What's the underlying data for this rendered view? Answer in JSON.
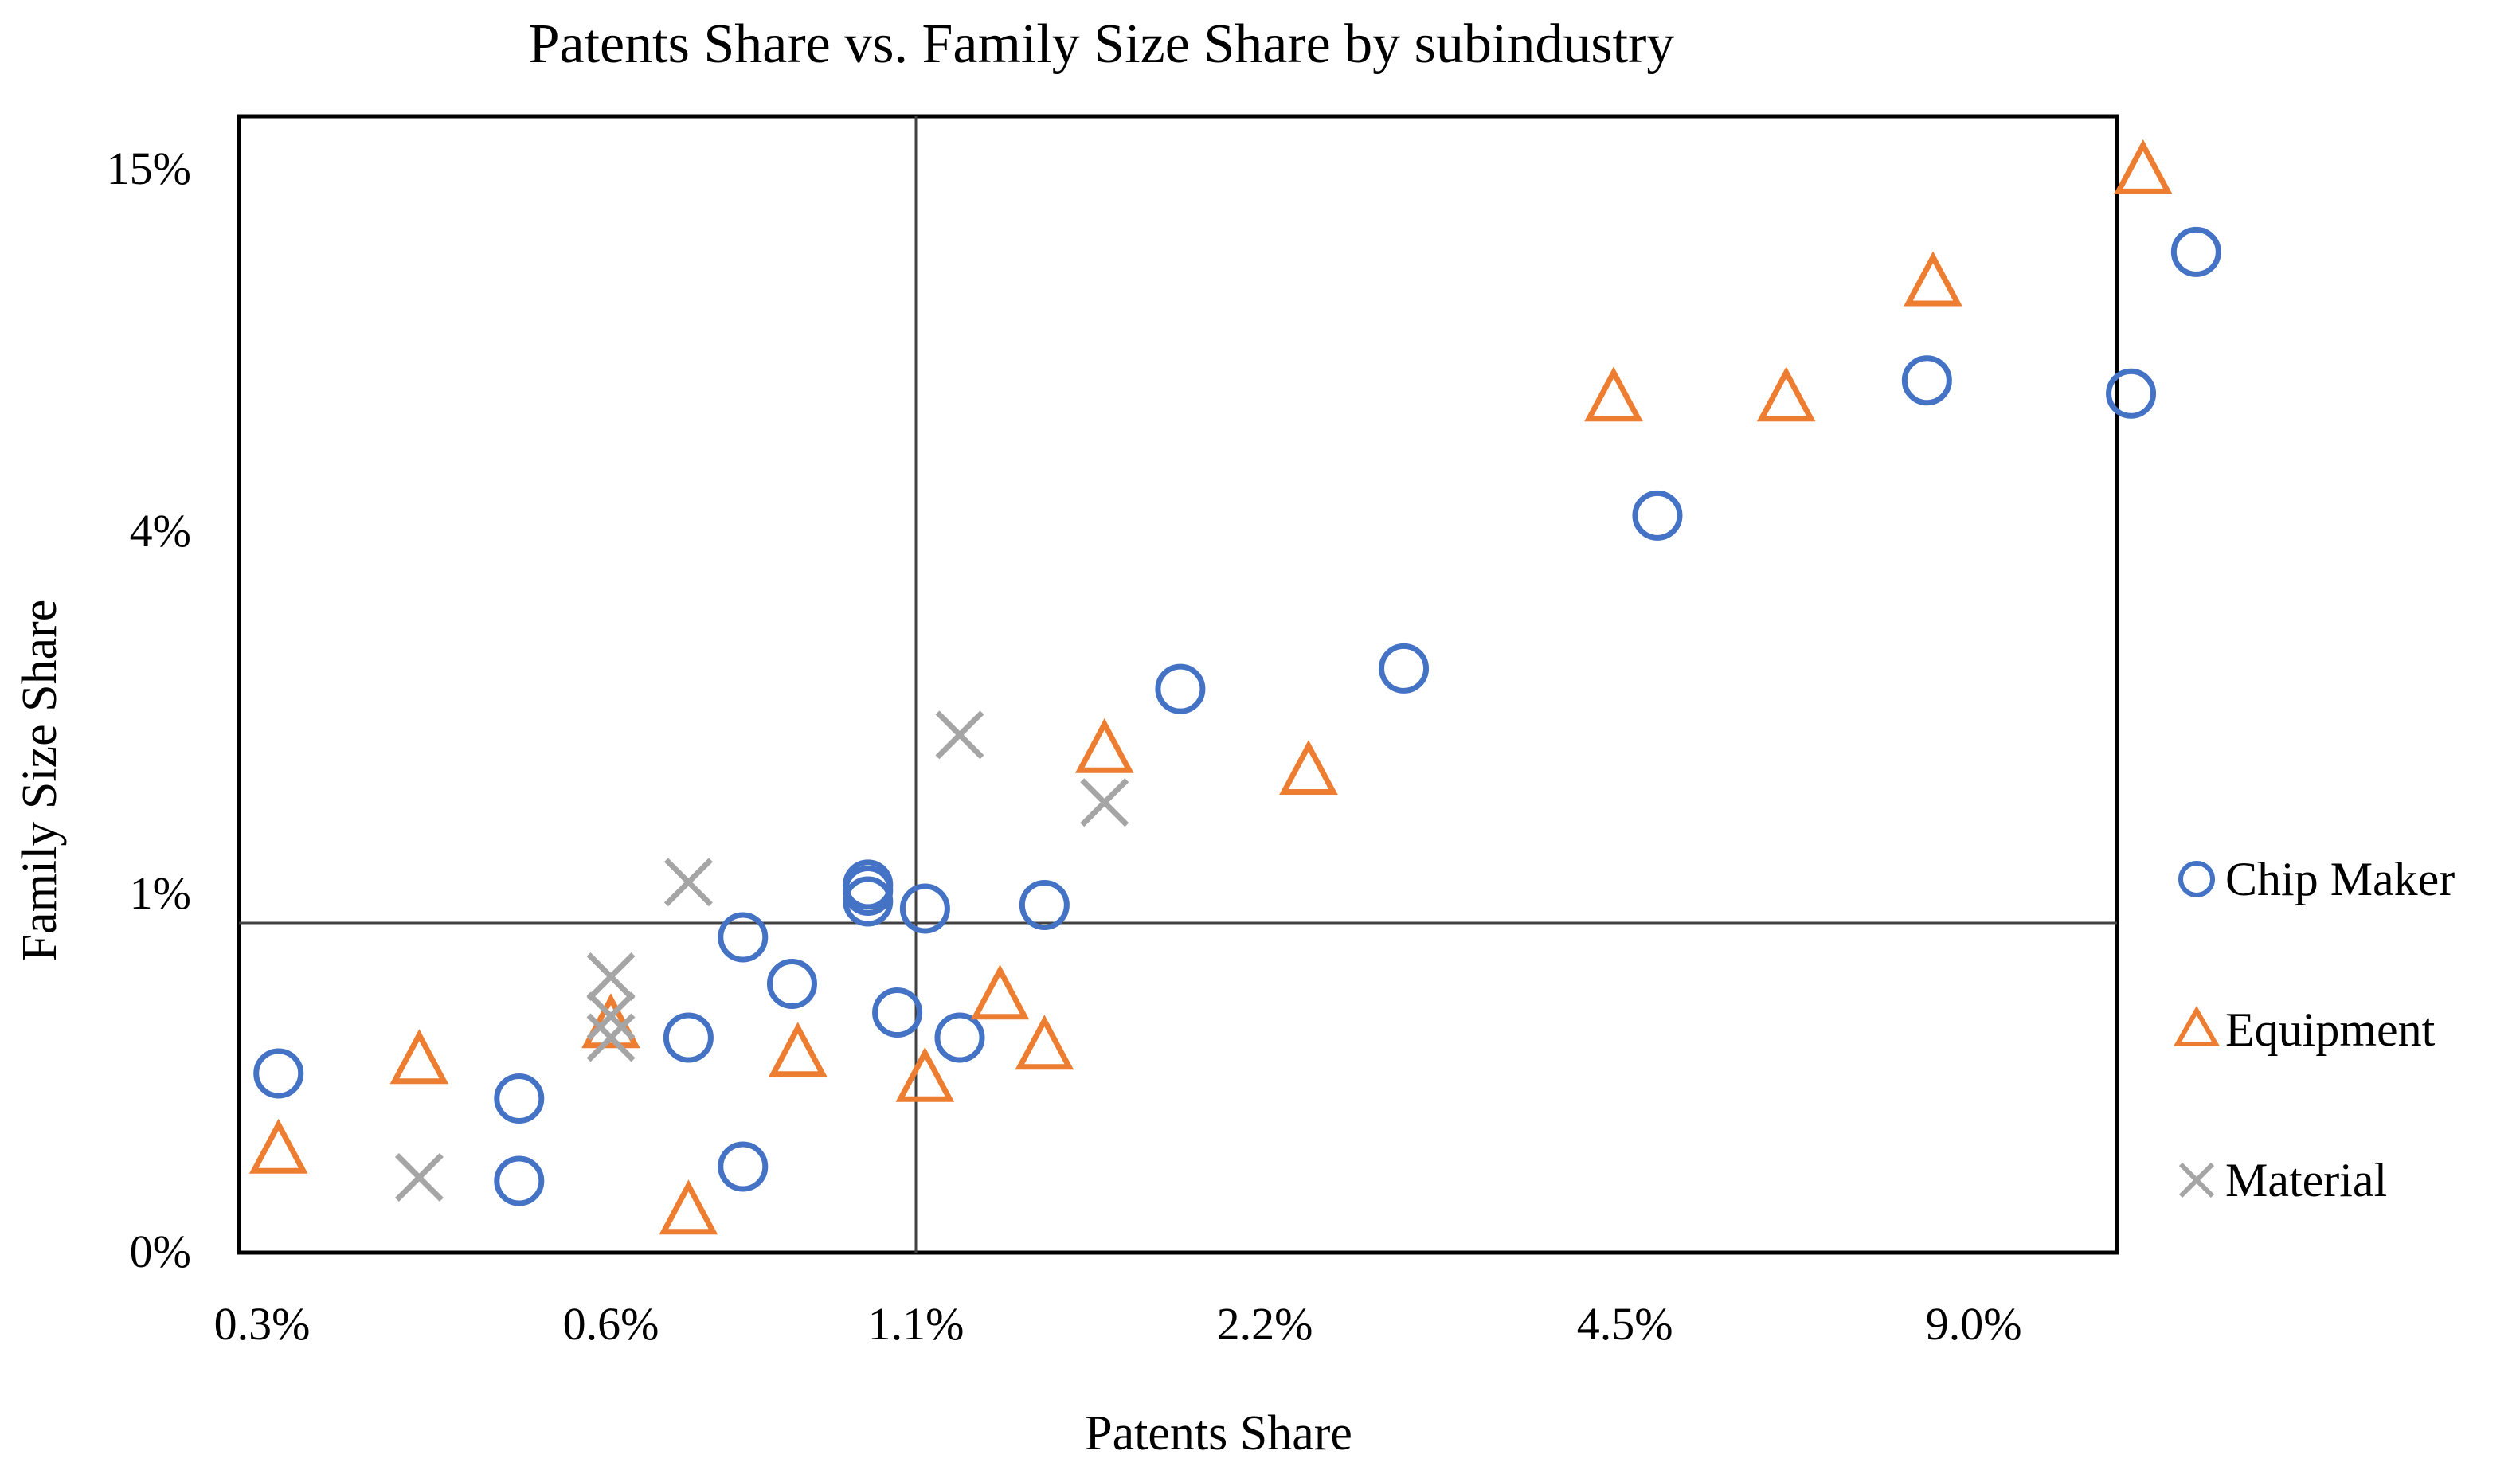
{
  "chart_data": {
    "type": "scatter",
    "title": "Patents Share vs. Family Size Share by subindustry",
    "xlabel": "Patents Share",
    "ylabel": "Family Size Share",
    "x_scale": "log",
    "y_scale": "custom",
    "x_ticks": [
      {
        "value": 0.3,
        "label": "0.3%"
      },
      {
        "value": 0.6,
        "label": "0.6%"
      },
      {
        "value": 1.1,
        "label": "1.1%"
      },
      {
        "value": 2.2,
        "label": "2.2%"
      },
      {
        "value": 4.5,
        "label": "4.5%"
      },
      {
        "value": 9.0,
        "label": "9.0%"
      }
    ],
    "y_ticks": [
      {
        "value": 0,
        "label": "0%"
      },
      {
        "value": 1,
        "label": "1%"
      },
      {
        "value": 4,
        "label": "4%"
      },
      {
        "value": 15,
        "label": "15%"
      }
    ],
    "reference_lines": {
      "x": 1.1,
      "y": 0.92
    },
    "legend_position": "right",
    "series": [
      {
        "name": "Chip Maker",
        "marker": "circle",
        "color": "#4472C4",
        "points": [
          [
            0.31,
            0.5
          ],
          [
            0.5,
            0.43
          ],
          [
            0.5,
            0.2
          ],
          [
            0.7,
            0.6
          ],
          [
            0.78,
            0.24
          ],
          [
            0.78,
            0.88
          ],
          [
            0.86,
            0.75
          ],
          [
            1.0,
            1.08
          ],
          [
            1.0,
            1.03
          ],
          [
            1.0,
            0.98
          ],
          [
            1.06,
            0.67
          ],
          [
            1.12,
            0.96
          ],
          [
            1.2,
            0.6
          ],
          [
            1.42,
            0.97
          ],
          [
            1.86,
            2.7
          ],
          [
            2.9,
            2.87
          ],
          [
            4.8,
            4.5
          ],
          [
            8.2,
            8.6
          ],
          [
            12.3,
            8.2
          ],
          [
            14.0,
            12.5
          ]
        ]
      },
      {
        "name": "Equipment",
        "marker": "triangle",
        "color": "#ED7D31",
        "points": [
          [
            0.31,
            0.28
          ],
          [
            0.41,
            0.53
          ],
          [
            0.6,
            0.63
          ],
          [
            0.7,
            0.11
          ],
          [
            0.87,
            0.55
          ],
          [
            1.12,
            0.48
          ],
          [
            1.3,
            0.71
          ],
          [
            1.42,
            0.57
          ],
          [
            1.6,
            2.18
          ],
          [
            2.4,
            2.0
          ],
          [
            4.4,
            8.0
          ],
          [
            6.2,
            8.0
          ],
          [
            8.3,
            11.5
          ],
          [
            12.6,
            14.9
          ]
        ]
      },
      {
        "name": "Material",
        "marker": "x",
        "color": "#A5A5A5",
        "points": [
          [
            0.41,
            0.21
          ],
          [
            0.6,
            0.6
          ],
          [
            0.6,
            0.66
          ],
          [
            0.6,
            0.77
          ],
          [
            0.7,
            1.1
          ],
          [
            1.2,
            2.32
          ],
          [
            1.6,
            1.76
          ]
        ]
      }
    ]
  }
}
